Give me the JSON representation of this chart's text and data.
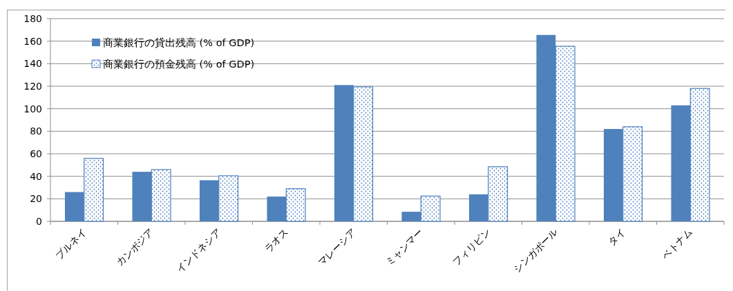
{
  "chart_data": {
    "type": "bar",
    "categories": [
      "ブルネイ",
      "カンボジア",
      "インドネシア",
      "ラオス",
      "マレーシア",
      "ミャンマー",
      "フィリピン",
      "シンガポール",
      "タイ",
      "ベトナム"
    ],
    "series": [
      {
        "name": "商業銀行の貸出残高 (% of GDP)",
        "color": "#4f81bd",
        "values": [
          26,
          44,
          36.5,
          22,
          121,
          8.5,
          24,
          165.5,
          82,
          103
        ]
      },
      {
        "name": "商業銀行の預金残高 (% of GDP)",
        "color": "#4f81bd",
        "values": [
          56,
          46,
          40.5,
          29,
          119.5,
          22.5,
          48.5,
          155.5,
          84,
          118
        ]
      }
    ],
    "ylim": [
      0,
      180
    ],
    "yticks": [
      0,
      20,
      40,
      60,
      80,
      100,
      120,
      140,
      160,
      180
    ],
    "grid": "y",
    "legend": "top left"
  }
}
